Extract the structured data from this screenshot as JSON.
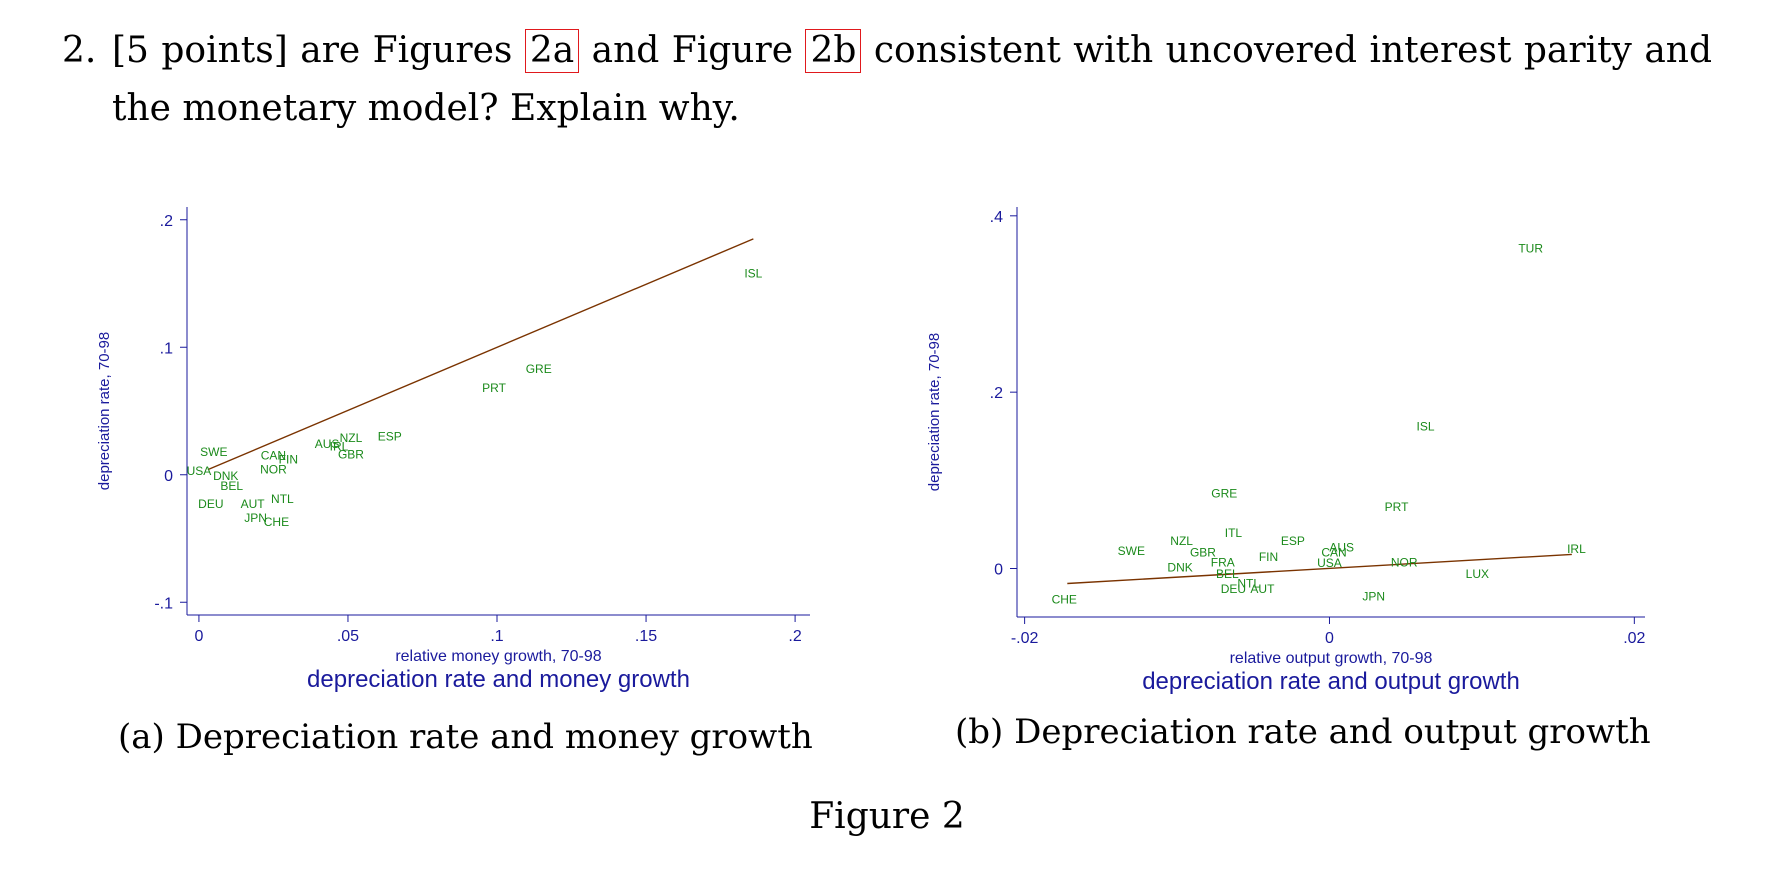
{
  "question": {
    "number": "2.",
    "before": "[5 points] are Figures",
    "ref_a": "2a",
    "middle": "and Figure",
    "ref_b": "2b",
    "after": "consistent with uncovered interest parity and the monetary model? Explain why."
  },
  "figure": {
    "title": "Figure 2",
    "caption_a": "(a) Depreciation rate and money growth",
    "caption_b": "(b) Depreciation rate and output growth"
  },
  "colors": {
    "axis": "#1a1a9c",
    "label": "#1b8a1b",
    "fit": "#7a3300",
    "ref": "#e0191d"
  },
  "chart_data": [
    {
      "type": "scatter",
      "title": "depreciation rate and money growth",
      "xlabel": "relative money growth, 70-98",
      "ylabel": "depreciation rate, 70-98",
      "xlim": [
        -0.004,
        0.205
      ],
      "ylim": [
        -0.11,
        0.21
      ],
      "xticks": [
        0,
        0.05,
        0.1,
        0.15,
        0.2
      ],
      "xtick_labels": [
        "0",
        ".05",
        ".1",
        ".15",
        ".2"
      ],
      "yticks": [
        -0.1,
        0,
        0.1,
        0.2
      ],
      "ytick_labels": [
        "-.1",
        "0",
        ".1",
        ".2"
      ],
      "fit_line": {
        "x": [
          0.003,
          0.186
        ],
        "y": [
          0.004,
          0.185
        ]
      },
      "points": [
        {
          "label": "ISL",
          "x": 0.186,
          "y": 0.158
        },
        {
          "label": "GRE",
          "x": 0.114,
          "y": 0.083
        },
        {
          "label": "PRT",
          "x": 0.099,
          "y": 0.068
        },
        {
          "label": "ESP",
          "x": 0.064,
          "y": 0.03
        },
        {
          "label": "NZL",
          "x": 0.051,
          "y": 0.029
        },
        {
          "label": "AUS",
          "x": 0.043,
          "y": 0.024
        },
        {
          "label": "IRL",
          "x": 0.047,
          "y": 0.022
        },
        {
          "label": "GBR",
          "x": 0.051,
          "y": 0.016
        },
        {
          "label": "SWE",
          "x": 0.005,
          "y": 0.018
        },
        {
          "label": "CAN",
          "x": 0.025,
          "y": 0.015
        },
        {
          "label": "FIN",
          "x": 0.03,
          "y": 0.012
        },
        {
          "label": "NOR",
          "x": 0.025,
          "y": 0.004
        },
        {
          "label": "USA",
          "x": 0.0,
          "y": 0.003
        },
        {
          "label": "DNK",
          "x": 0.009,
          "y": -0.001
        },
        {
          "label": "BEL",
          "x": 0.011,
          "y": -0.009
        },
        {
          "label": "DEU",
          "x": 0.004,
          "y": -0.023
        },
        {
          "label": "AUT",
          "x": 0.018,
          "y": -0.023
        },
        {
          "label": "NTL",
          "x": 0.028,
          "y": -0.019
        },
        {
          "label": "JPN",
          "x": 0.019,
          "y": -0.034
        },
        {
          "label": "CHE",
          "x": 0.026,
          "y": -0.037
        }
      ]
    },
    {
      "type": "scatter",
      "title": "depreciation rate and output growth",
      "xlabel": "relative output growth, 70-98",
      "ylabel": "depreciation rate, 70-98",
      "xlim": [
        -0.0205,
        0.0207
      ],
      "ylim": [
        -0.055,
        0.41
      ],
      "xticks": [
        -0.02,
        0,
        0.02
      ],
      "xtick_labels": [
        "-.02",
        "0",
        ".02"
      ],
      "yticks": [
        0,
        0.2,
        0.4
      ],
      "ytick_labels": [
        "0",
        ".2",
        ".4"
      ],
      "fit_line": {
        "x": [
          -0.0172,
          0.0159
        ],
        "y": [
          -0.017,
          0.016
        ]
      },
      "points": [
        {
          "label": "TUR",
          "x": 0.0132,
          "y": 0.363
        },
        {
          "label": "ISL",
          "x": 0.0063,
          "y": 0.161
        },
        {
          "label": "GRE",
          "x": -0.0069,
          "y": 0.085
        },
        {
          "label": "PRT",
          "x": 0.0044,
          "y": 0.07
        },
        {
          "label": "ITL",
          "x": -0.0063,
          "y": 0.04
        },
        {
          "label": "ESP",
          "x": -0.0024,
          "y": 0.031
        },
        {
          "label": "NZL",
          "x": -0.0097,
          "y": 0.031
        },
        {
          "label": "AUS",
          "x": 0.0008,
          "y": 0.024
        },
        {
          "label": "SWE",
          "x": -0.013,
          "y": 0.02
        },
        {
          "label": "CAN",
          "x": 0.0003,
          "y": 0.018
        },
        {
          "label": "GBR",
          "x": -0.0083,
          "y": 0.018
        },
        {
          "label": "IRL",
          "x": 0.0162,
          "y": 0.022
        },
        {
          "label": "FIN",
          "x": -0.004,
          "y": 0.013
        },
        {
          "label": "FRA",
          "x": -0.007,
          "y": 0.007
        },
        {
          "label": "USA",
          "x": 0.0,
          "y": 0.006
        },
        {
          "label": "NOR",
          "x": 0.0049,
          "y": 0.007
        },
        {
          "label": "DNK",
          "x": -0.0098,
          "y": 0.001
        },
        {
          "label": "BEL",
          "x": -0.0067,
          "y": -0.006
        },
        {
          "label": "LUX",
          "x": 0.0097,
          "y": -0.006
        },
        {
          "label": "NTL",
          "x": -0.0053,
          "y": -0.017
        },
        {
          "label": "DEU",
          "x": -0.0063,
          "y": -0.023
        },
        {
          "label": "AUT",
          "x": -0.0044,
          "y": -0.023
        },
        {
          "label": "JPN",
          "x": 0.0029,
          "y": -0.032
        },
        {
          "label": "CHE",
          "x": -0.0174,
          "y": -0.035
        }
      ]
    }
  ]
}
